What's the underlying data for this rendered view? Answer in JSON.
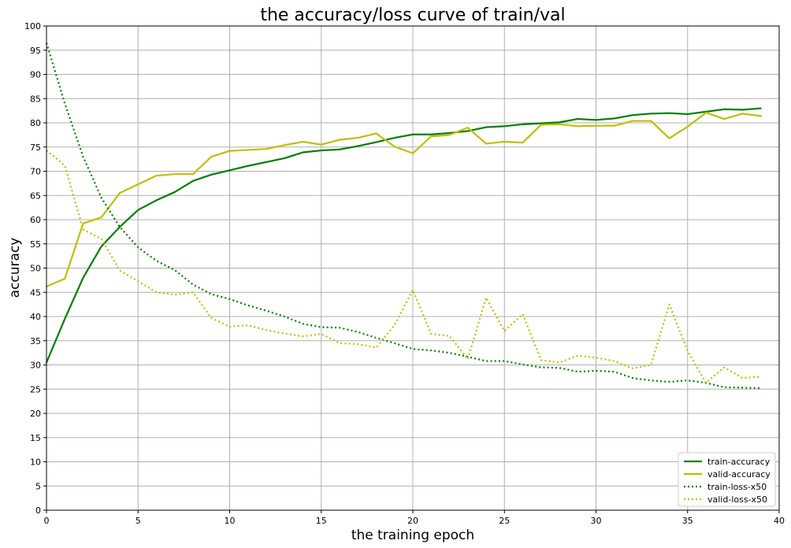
{
  "chart_data": {
    "type": "line",
    "title": "the accuracy/loss curve of train/val",
    "xlabel": "the training epoch",
    "ylabel": "accuracy",
    "xlim": [
      0,
      40
    ],
    "ylim": [
      0,
      100
    ],
    "xticks": [
      0,
      5,
      10,
      15,
      20,
      25,
      30,
      35,
      40
    ],
    "yticks": [
      0,
      5,
      10,
      15,
      20,
      25,
      30,
      35,
      40,
      45,
      50,
      55,
      60,
      65,
      70,
      75,
      80,
      85,
      90,
      95,
      100
    ],
    "grid": true,
    "legend_position": "bottom-right",
    "x": [
      0,
      1,
      2,
      3,
      4,
      5,
      6,
      7,
      8,
      9,
      10,
      11,
      12,
      13,
      14,
      15,
      16,
      17,
      18,
      19,
      20,
      21,
      22,
      23,
      24,
      25,
      26,
      27,
      28,
      29,
      30,
      31,
      32,
      33,
      34,
      35,
      36,
      37,
      38,
      39
    ],
    "series": [
      {
        "name": "train-accuracy",
        "color": "#008000",
        "style": "solid",
        "values": [
          30.5,
          39.5,
          48.0,
          54.5,
          58.5,
          62.0,
          64.0,
          65.7,
          68.0,
          69.3,
          70.2,
          71.1,
          71.9,
          72.7,
          73.9,
          74.3,
          74.5,
          75.2,
          76.0,
          76.9,
          77.6,
          77.6,
          77.9,
          78.3,
          79.1,
          79.3,
          79.7,
          79.9,
          80.1,
          80.8,
          80.6,
          80.9,
          81.6,
          81.9,
          82.0,
          81.8,
          82.3,
          82.8,
          82.7,
          83.0
        ]
      },
      {
        "name": "valid-accuracy",
        "color": "#bfbf00",
        "style": "solid",
        "values": [
          46.2,
          47.8,
          59.2,
          60.5,
          65.5,
          67.3,
          69.1,
          69.4,
          69.4,
          73.0,
          74.2,
          74.4,
          74.6,
          75.4,
          76.1,
          75.5,
          76.5,
          76.9,
          77.8,
          75.1,
          73.7,
          77.2,
          77.5,
          79.0,
          75.7,
          76.1,
          75.9,
          79.6,
          79.7,
          79.3,
          79.4,
          79.4,
          80.4,
          80.4,
          76.8,
          79.2,
          82.1,
          80.8,
          81.9,
          81.4
        ]
      },
      {
        "name": "train-loss-x50",
        "color": "#008000",
        "style": "dotted",
        "values": [
          96.5,
          84.0,
          73.0,
          64.5,
          58.5,
          54.3,
          51.5,
          49.6,
          46.6,
          44.6,
          43.6,
          42.3,
          41.2,
          40.0,
          38.5,
          37.8,
          37.7,
          36.8,
          35.6,
          34.5,
          33.3,
          33.0,
          32.5,
          31.7,
          30.8,
          30.8,
          30.1,
          29.5,
          29.4,
          28.6,
          28.8,
          28.6,
          27.3,
          26.8,
          26.5,
          26.8,
          26.3,
          25.4,
          25.3,
          25.2
        ]
      },
      {
        "name": "valid-loss-x50",
        "color": "#bfbf00",
        "style": "dotted",
        "values": [
          74.3,
          71.2,
          58.0,
          56.0,
          49.5,
          47.3,
          45.0,
          44.5,
          45.0,
          39.7,
          37.9,
          38.2,
          37.2,
          36.5,
          35.9,
          36.4,
          34.5,
          34.3,
          33.6,
          38.2,
          45.5,
          36.4,
          36.0,
          31.2,
          43.9,
          37.0,
          40.5,
          31.0,
          30.5,
          31.9,
          31.5,
          30.8,
          29.3,
          30.0,
          42.5,
          32.9,
          26.3,
          29.5,
          27.3,
          27.6
        ]
      }
    ]
  }
}
